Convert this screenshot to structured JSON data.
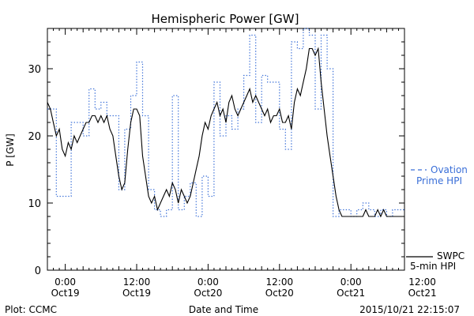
{
  "chart_data": {
    "type": "line",
    "title": "Hemispheric Power [GW]",
    "ylabel": "P [GW]",
    "xlabel": "Date and Time",
    "ylim": [
      0,
      36
    ],
    "xlim_hours": [
      -3,
      57
    ],
    "x_unit": "hours since 2015-10-19 00:00 UT",
    "yticks": [
      0,
      10,
      20,
      30
    ],
    "xticks": [
      {
        "x": 0,
        "label1": "0:00",
        "label2": "Oct19"
      },
      {
        "x": 12,
        "label1": "12:00",
        "label2": "Oct19"
      },
      {
        "x": 24,
        "label1": "0:00",
        "label2": "Oct20"
      },
      {
        "x": 36,
        "label1": "12:00",
        "label2": "Oct20"
      },
      {
        "x": 48,
        "label1": "0:00",
        "label2": "Oct21"
      },
      {
        "x": 60,
        "label1": "12:00",
        "label2": "Oct21"
      }
    ],
    "series": [
      {
        "name": "Ovation Prime HPI",
        "style": "dotted-step",
        "color": "#3a6fd8",
        "x": [
          -3,
          -1.5,
          0,
          1,
          2,
          3,
          4,
          5,
          6,
          7,
          8,
          9,
          10,
          11,
          12,
          13,
          14,
          15,
          16,
          17,
          18,
          19,
          20,
          21,
          22,
          23,
          24,
          25,
          26,
          27,
          28,
          29,
          30,
          31,
          32,
          33,
          34,
          35,
          36,
          37,
          38,
          39,
          40,
          41,
          42,
          43,
          44,
          45,
          46,
          47,
          48,
          49,
          50,
          51,
          52,
          53,
          54,
          55,
          56,
          57,
          58,
          59,
          60,
          61,
          62,
          63,
          64,
          65,
          66,
          67,
          68,
          69,
          70,
          71,
          72,
          73,
          74,
          75
        ],
        "values": [
          24,
          11,
          11,
          22,
          22,
          20,
          27,
          24,
          25,
          23,
          23,
          12,
          21,
          26,
          31,
          23,
          12,
          9,
          8,
          9,
          26,
          9,
          11,
          13,
          8,
          14,
          11,
          28,
          20,
          23,
          21,
          24,
          29,
          35,
          22,
          29,
          28,
          28,
          21,
          18,
          34,
          33,
          36,
          35,
          24,
          35,
          30,
          8,
          9,
          9,
          8,
          9,
          10,
          9,
          8,
          9,
          8,
          9,
          9,
          8,
          31,
          32,
          8,
          9,
          18,
          12,
          18,
          8,
          22,
          22,
          16,
          10,
          12,
          9,
          8,
          10,
          9,
          9
        ]
      },
      {
        "name": "SWPC 5-min HPI",
        "style": "solid",
        "color": "#000000",
        "x": [
          -3,
          -2.5,
          -2,
          -1.5,
          -1,
          -0.5,
          0,
          0.5,
          1,
          1.5,
          2,
          2.5,
          3,
          3.5,
          4,
          4.5,
          5,
          5.5,
          6,
          6.5,
          7,
          7.5,
          8,
          8.5,
          9,
          9.5,
          10,
          10.5,
          11,
          11.5,
          12,
          12.5,
          13,
          13.5,
          14,
          14.5,
          15,
          15.5,
          16,
          16.5,
          17,
          17.5,
          18,
          18.5,
          19,
          19.5,
          20,
          20.5,
          21,
          21.5,
          22,
          22.5,
          23,
          23.5,
          24,
          24.5,
          25,
          25.5,
          26,
          26.5,
          27,
          27.5,
          28,
          28.5,
          29,
          29.5,
          30,
          30.5,
          31,
          31.5,
          32,
          32.5,
          33,
          33.5,
          34,
          34.5,
          35,
          35.5,
          36,
          36.5,
          37,
          37.5,
          38,
          38.5,
          39,
          39.5,
          40,
          40.5,
          41,
          41.5,
          42,
          42.5,
          43,
          43.5,
          44,
          44.5,
          45,
          45.5,
          46,
          46.5,
          47,
          47.5,
          48,
          48.5,
          49,
          49.5,
          50,
          50.5,
          51,
          51.5,
          52,
          52.5,
          53,
          53.5,
          54,
          54.5,
          55,
          55.5,
          56,
          56.5,
          57,
          57.5,
          58,
          58.5,
          59,
          59.5,
          60,
          60.5,
          61,
          61.5,
          62,
          62.5,
          63,
          63.5,
          64,
          64.5,
          65,
          65.5,
          66,
          66.5,
          67,
          67.5,
          68,
          68.5,
          69,
          69.5,
          70,
          70.5,
          71,
          71.5,
          72,
          72.5,
          73,
          73.5,
          74,
          74.5,
          75
        ],
        "values": [
          25,
          24,
          22,
          20,
          21,
          18,
          17,
          19,
          18,
          20,
          19,
          20,
          21,
          22,
          22,
          23,
          23,
          22,
          23,
          22,
          23,
          21,
          20,
          17,
          14,
          12,
          13,
          18,
          22,
          24,
          24,
          23,
          17,
          14,
          11,
          10,
          11,
          9,
          10,
          11,
          12,
          11,
          13,
          12,
          10,
          12,
          11,
          10,
          11,
          13,
          15,
          17,
          20,
          22,
          21,
          23,
          24,
          25,
          23,
          24,
          22,
          25,
          26,
          24,
          23,
          24,
          25,
          26,
          27,
          25,
          26,
          25,
          24,
          23,
          24,
          22,
          23,
          23,
          24,
          22,
          22,
          23,
          21,
          25,
          27,
          26,
          28,
          30,
          33,
          33,
          32,
          33,
          28,
          24,
          20,
          17,
          14,
          11,
          9,
          8,
          8,
          8,
          8,
          8,
          8,
          8,
          8,
          9,
          8,
          8,
          8,
          9,
          8,
          9,
          8,
          8,
          8,
          8,
          8,
          8,
          8,
          8,
          8,
          8,
          9,
          8,
          8,
          8,
          10,
          13,
          15,
          21,
          18,
          13,
          10,
          9,
          12,
          10,
          15,
          12,
          9,
          10,
          13,
          10,
          11,
          9,
          10,
          12,
          13,
          11,
          10,
          10,
          11,
          10,
          9,
          8,
          9
        ]
      }
    ],
    "legend": [
      {
        "label1": "Ovation",
        "label2": "Prime HPI",
        "style": "dashed",
        "color": "#3a6fd8"
      },
      {
        "label1": "SWPC",
        "label2": "5-min HPI",
        "style": "solid",
        "color": "#000000"
      }
    ],
    "footer": {
      "left": "Plot: CCMC",
      "center": "Date and Time",
      "right": "2015/10/21 22:15:07"
    }
  }
}
